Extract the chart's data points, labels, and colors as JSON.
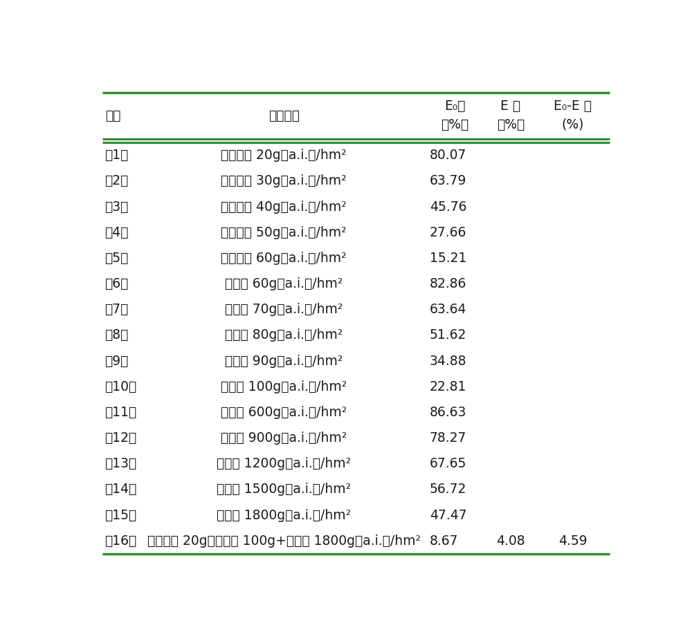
{
  "rows": [
    [
      "（1）",
      "吡嘧磺隆 20g（a.i.）/hm²",
      "80.07",
      "",
      ""
    ],
    [
      "（2）",
      "吡嘧磺隆 30g（a.i.）/hm²",
      "63.79",
      "",
      ""
    ],
    [
      "（3）",
      "吡嘧磺隆 40g（a.i.）/hm²",
      "45.76",
      "",
      ""
    ],
    [
      "（4）",
      "吡嘧磺隆 50g（a.i.）/hm²",
      "27.66",
      "",
      ""
    ],
    [
      "（5）",
      "吡嘧磺隆 60g（a.i.）/hm²",
      "15.21",
      "",
      ""
    ],
    [
      "（6）",
      "西草净 60g（a.i.）/hm²",
      "82.86",
      "",
      ""
    ],
    [
      "（7）",
      "西草净 70g（a.i.）/hm²",
      "63.64",
      "",
      ""
    ],
    [
      "（8）",
      "西草净 80g（a.i.）/hm²",
      "51.62",
      "",
      ""
    ],
    [
      "（9）",
      "西草净 90g（a.i.）/hm²",
      "34.88",
      "",
      ""
    ],
    [
      "（10）",
      "西草净 100g（a.i.）/hm²",
      "22.81",
      "",
      ""
    ],
    [
      "（11）",
      "丁草胺 600g（a.i.）/hm²",
      "86.63",
      "",
      ""
    ],
    [
      "（12）",
      "丁草胺 900g（a.i.）/hm²",
      "78.27",
      "",
      ""
    ],
    [
      "（13）",
      "丁草胺 1200g（a.i.）/hm²",
      "67.65",
      "",
      ""
    ],
    [
      "（14）",
      "丁草胺 1500g（a.i.）/hm²",
      "56.72",
      "",
      ""
    ],
    [
      "（15）",
      "丁草胺 1800g（a.i.）/hm²",
      "47.47",
      "",
      ""
    ],
    [
      "（16）",
      "吡嘧磺隆 20g＋西草净 100g+丁草胺 1800g（a.i.）/hm²",
      "8.67",
      "4.08",
      "4.59"
    ]
  ],
  "header_col0": "处理",
  "header_col1": "处理剂量",
  "header_col2_line1": "E₀值",
  "header_col2_line2": "（%）",
  "header_col3_line1": "E 值",
  "header_col3_line2": "（%）",
  "header_col4_line1": "E₀-E 值",
  "header_col4_line2": "(%)",
  "green_color": "#2e8b2e",
  "text_color": "#1a1a1a",
  "bg_color": "#ffffff",
  "font_size": 13.5,
  "header_font_size": 13.5,
  "fig_width": 10.0,
  "fig_height": 9.14,
  "dpi": 100
}
